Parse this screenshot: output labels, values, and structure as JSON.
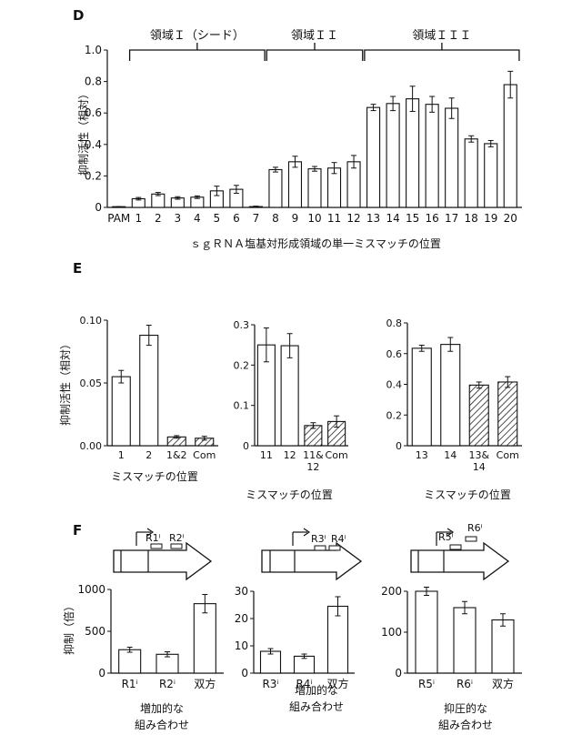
{
  "panels": {
    "D": {
      "letter": "D",
      "ylabel": "抑制活性（相対）",
      "xlabel": "ｓｇＲＮＡ塩基対形成領域の単一ミスマッチの位置",
      "regions": [
        "領域Ｉ（シード）",
        "領域ＩＩ",
        "領域ＩＩＩ"
      ]
    },
    "E": {
      "letter": "E",
      "ylabel": "抑制活性（相対）",
      "xlabels": [
        "ミスマッチの位置",
        "ミスマッチの位置",
        "ミスマッチの位置"
      ]
    },
    "F": {
      "letter": "F",
      "ylabel": "抑制（倍）",
      "gene_labels": [
        [
          "R1ⁱ",
          "R2ⁱ"
        ],
        [
          "R3ⁱ",
          "R4ⁱ"
        ],
        [
          "R5ⁱ",
          "R6ⁱ"
        ]
      ],
      "captions": [
        [
          "増加的な",
          "組み合わせ"
        ],
        [
          "増加的な",
          "組み合わせ"
        ],
        [
          "抑圧的な",
          "組み合わせ"
        ]
      ]
    }
  },
  "chart_data": [
    {
      "id": "D",
      "type": "bar",
      "ylabel": "抑制活性（相対）",
      "xlabel": "ｓｇＲＮＡ塩基対形成領域の単一ミスマッチの位置",
      "ylim": [
        0,
        1.0
      ],
      "yticks": [
        "0",
        "0.2",
        "0.4",
        "0.6",
        "0.8",
        "1.0"
      ],
      "regions": [
        {
          "name": "領域Ｉ（シード）",
          "from": "1",
          "to": "7"
        },
        {
          "name": "領域ＩＩ",
          "from": "8",
          "to": "12"
        },
        {
          "name": "領域ＩＩＩ",
          "from": "13",
          "to": "20"
        }
      ],
      "categories": [
        "PAM",
        "1",
        "2",
        "3",
        "4",
        "5",
        "6",
        "7",
        "8",
        "9",
        "10",
        "11",
        "12",
        "13",
        "14",
        "15",
        "16",
        "17",
        "18",
        "19",
        "20"
      ],
      "values": [
        0.003,
        0.055,
        0.085,
        0.06,
        0.065,
        0.105,
        0.115,
        0.005,
        0.24,
        0.29,
        0.245,
        0.25,
        0.29,
        0.635,
        0.66,
        0.69,
        0.655,
        0.63,
        0.435,
        0.405,
        0.78
      ],
      "errors": [
        0.002,
        0.008,
        0.01,
        0.008,
        0.008,
        0.03,
        0.025,
        0.003,
        0.015,
        0.035,
        0.015,
        0.035,
        0.04,
        0.02,
        0.045,
        0.08,
        0.05,
        0.065,
        0.02,
        0.02,
        0.085
      ],
      "fills": [
        "white",
        "white",
        "white",
        "white",
        "white",
        "white",
        "white",
        "white",
        "white",
        "white",
        "white",
        "white",
        "white",
        "white",
        "white",
        "white",
        "white",
        "white",
        "white",
        "white",
        "white"
      ]
    },
    {
      "id": "E1",
      "type": "bar",
      "ylabel": "抑制活性（相対）",
      "xlabel": "ミスマッチの位置",
      "ylim": [
        0,
        0.1
      ],
      "yticks": [
        "0.00",
        "0.05",
        "0.10"
      ],
      "categories": [
        [
          "1"
        ],
        [
          "2"
        ],
        [
          "1&2"
        ],
        [
          "Com"
        ]
      ],
      "values": [
        0.055,
        0.088,
        0.007,
        0.006
      ],
      "errors": [
        0.005,
        0.008,
        0.001,
        0.0015
      ],
      "fills": [
        "white",
        "white",
        "hatch",
        "hatch"
      ]
    },
    {
      "id": "E2",
      "type": "bar",
      "xlabel": "ミスマッチの位置",
      "ylim": [
        0,
        0.3
      ],
      "yticks": [
        "0",
        "0.1",
        "0.2",
        "0.3"
      ],
      "categories": [
        [
          "11"
        ],
        [
          "12"
        ],
        [
          "11&",
          "12"
        ],
        [
          "Com"
        ]
      ],
      "values": [
        0.25,
        0.248,
        0.05,
        0.06
      ],
      "errors": [
        0.042,
        0.03,
        0.007,
        0.014
      ],
      "fills": [
        "white",
        "white",
        "hatch",
        "hatch"
      ]
    },
    {
      "id": "E3",
      "type": "bar",
      "xlabel": "ミスマッチの位置",
      "ylim": [
        0,
        0.8
      ],
      "yticks": [
        "0",
        "0.2",
        "0.4",
        "0.6",
        "0.8"
      ],
      "categories": [
        [
          "13"
        ],
        [
          "14"
        ],
        [
          "13&",
          "14"
        ],
        [
          "Com"
        ]
      ],
      "values": [
        0.635,
        0.66,
        0.395,
        0.415
      ],
      "errors": [
        0.02,
        0.045,
        0.02,
        0.035
      ],
      "fills": [
        "white",
        "white",
        "hatch",
        "hatch"
      ]
    },
    {
      "id": "F1",
      "type": "bar",
      "ylabel": "抑制（倍）",
      "ylim": [
        0,
        1000
      ],
      "yticks": [
        "0",
        "500",
        "1000"
      ],
      "categories": [
        [
          "R1ⁱ"
        ],
        [
          "R2ⁱ"
        ],
        [
          "双方"
        ]
      ],
      "values": [
        280,
        225,
        830
      ],
      "errors": [
        30,
        30,
        110
      ],
      "fills": [
        "white",
        "white",
        "white"
      ]
    },
    {
      "id": "F2",
      "type": "bar",
      "ylim": [
        0,
        30
      ],
      "yticks": [
        "0",
        "10",
        "20",
        "30"
      ],
      "categories": [
        [
          "R3ⁱ"
        ],
        [
          "R4ⁱ"
        ],
        [
          "双方"
        ]
      ],
      "values": [
        8,
        6.2,
        24.5
      ],
      "errors": [
        1,
        0.8,
        3.5
      ],
      "fills": [
        "white",
        "white",
        "white"
      ]
    },
    {
      "id": "F3",
      "type": "bar",
      "ylim": [
        0,
        200
      ],
      "yticks": [
        "0",
        "100",
        "200"
      ],
      "categories": [
        [
          "R5ⁱ"
        ],
        [
          "R6ⁱ"
        ],
        [
          "双方"
        ]
      ],
      "values": [
        200,
        160,
        130
      ],
      "errors": [
        10,
        15,
        15
      ],
      "fills": [
        "white",
        "white",
        "white"
      ]
    }
  ]
}
